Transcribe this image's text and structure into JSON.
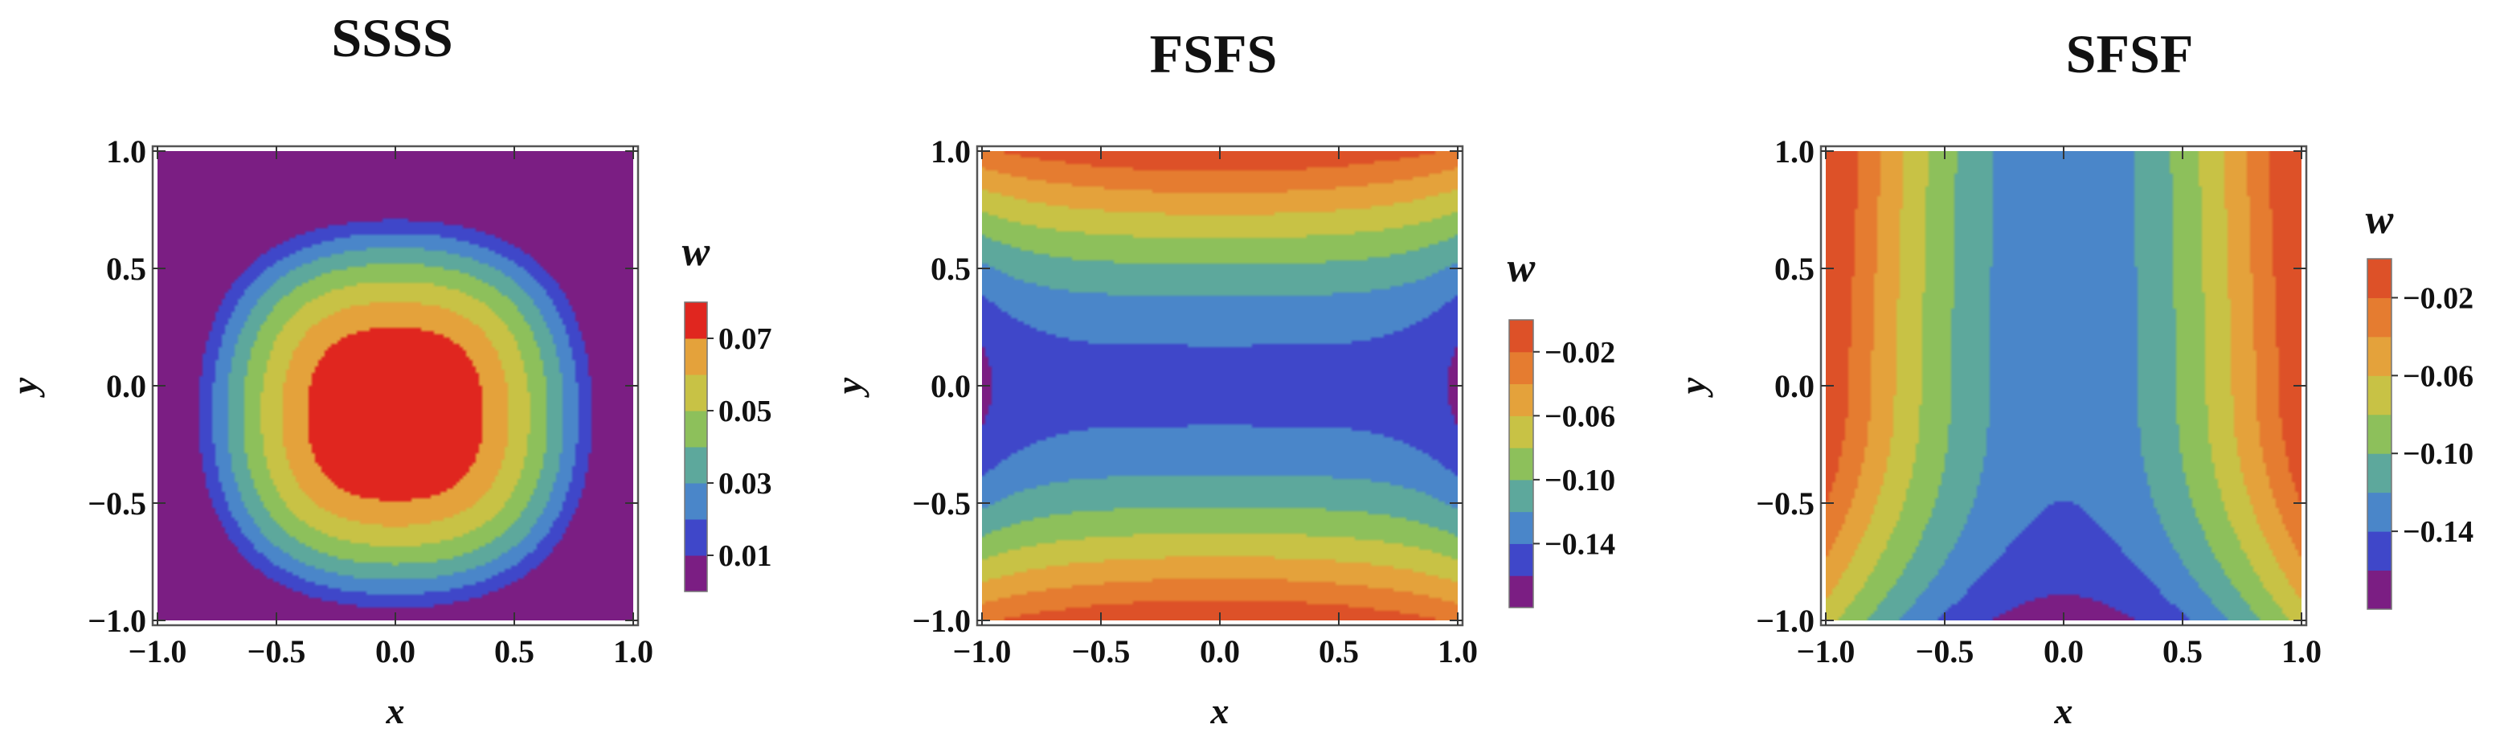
{
  "palette": [
    "#7B1E83",
    "#3F47C9",
    "#4A86C9",
    "#5DA89C",
    "#8DC05B",
    "#C8C245",
    "#E4A23B",
    "#E57C30",
    "#DD5128",
    "#E0261F"
  ],
  "chart_data": [
    {
      "type": "contour",
      "name": "SSSS",
      "title": "SSSS",
      "xlabel": "x",
      "ylabel": "y",
      "xlim": [
        -1.0,
        1.0
      ],
      "ylim": [
        -1.0,
        1.0
      ],
      "xticks": [
        "−1.0",
        "−0.5",
        "0.0",
        "0.5",
        "1.0"
      ],
      "yticks": [
        "−1.0",
        "−0.5",
        "0.0",
        "0.5",
        "1.0"
      ],
      "colorbar": {
        "title": "w",
        "levels": [
          0.0,
          0.01,
          0.02,
          0.03,
          0.04,
          0.05,
          0.06,
          0.07,
          0.08
        ],
        "colors": [
          "#7B1E83",
          "#3F47C9",
          "#4A86C9",
          "#5DA89C",
          "#8DC05B",
          "#C8C245",
          "#E4A23B",
          "#E0261F"
        ],
        "ticks": [
          "0.01",
          "0.03",
          "0.05",
          "0.07"
        ]
      },
      "field": {
        "model": "ssss",
        "wmax": 0.085,
        "cx": 0.0,
        "cy": -0.12
      }
    },
    {
      "type": "contour",
      "name": "FSFS",
      "title": "FSFS",
      "xlabel": "x",
      "ylabel": "y",
      "xlim": [
        -1.0,
        1.0
      ],
      "ylim": [
        -1.0,
        1.0
      ],
      "xticks": [
        "−1.0",
        "−0.5",
        "0.0",
        "0.5",
        "1.0"
      ],
      "yticks": [
        "−1.0",
        "−0.5",
        "0.0",
        "0.5",
        "1.0"
      ],
      "colorbar": {
        "title": "w",
        "levels": [
          -0.18,
          -0.16,
          -0.14,
          -0.12,
          -0.1,
          -0.08,
          -0.06,
          -0.04,
          -0.02,
          0.0
        ],
        "colors": [
          "#7B1E83",
          "#3F47C9",
          "#4A86C9",
          "#5DA89C",
          "#8DC05B",
          "#C8C245",
          "#E4A23B",
          "#E57C30",
          "#DD5128"
        ],
        "ticks": [
          "−0.02",
          "−0.06",
          "−0.10",
          "−0.14"
        ]
      },
      "field": {
        "model": "fsfs",
        "wmin": -0.165
      }
    },
    {
      "type": "contour",
      "name": "SFSF",
      "title": "SFSF",
      "xlabel": "x",
      "ylabel": "y",
      "xlim": [
        -1.0,
        1.0
      ],
      "ylim": [
        -1.0,
        1.0
      ],
      "xticks": [
        "−1.0",
        "−0.5",
        "0.0",
        "0.5",
        "1.0"
      ],
      "yticks": [
        "−1.0",
        "−0.5",
        "0.0",
        "0.5",
        "1.0"
      ],
      "colorbar": {
        "title": "w",
        "levels": [
          -0.18,
          -0.16,
          -0.14,
          -0.12,
          -0.1,
          -0.08,
          -0.06,
          -0.04,
          -0.02,
          0.0
        ],
        "colors": [
          "#7B1E83",
          "#3F47C9",
          "#4A86C9",
          "#5DA89C",
          "#8DC05B",
          "#C8C245",
          "#E4A23B",
          "#E57C30",
          "#DD5128"
        ],
        "ticks": [
          "−0.02",
          "−0.06",
          "−0.10",
          "−0.14"
        ]
      },
      "field": {
        "model": "sfsf",
        "wmin": -0.17
      }
    }
  ]
}
